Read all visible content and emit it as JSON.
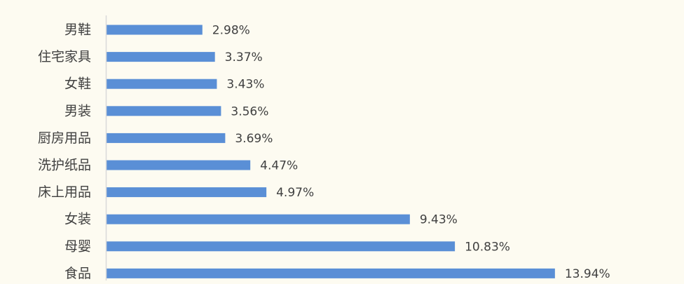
{
  "chart_data": {
    "type": "bar",
    "orientation": "horizontal",
    "categories": [
      "男鞋",
      "住宅家具",
      "女鞋",
      "男装",
      "厨房用品",
      "洗护纸品",
      "床上用品",
      "女装",
      "母婴",
      "食品"
    ],
    "values": [
      2.98,
      3.37,
      3.43,
      3.56,
      3.69,
      4.47,
      4.97,
      9.43,
      10.83,
      13.94
    ],
    "data_labels": [
      "2.98%",
      "3.37%",
      "3.43%",
      "3.56%",
      "3.69%",
      "4.47%",
      "4.97%",
      "9.43%",
      "10.83%",
      "13.94%"
    ],
    "value_unit": "%",
    "xlim": [
      0,
      20
    ],
    "grid": false,
    "legend": "none",
    "title": "",
    "xlabel": "",
    "ylabel": ""
  },
  "colors": {
    "bar": "#5a8fd6",
    "axis": "#d9d9d9",
    "text": "#404040",
    "background": "#fdfbf1"
  }
}
